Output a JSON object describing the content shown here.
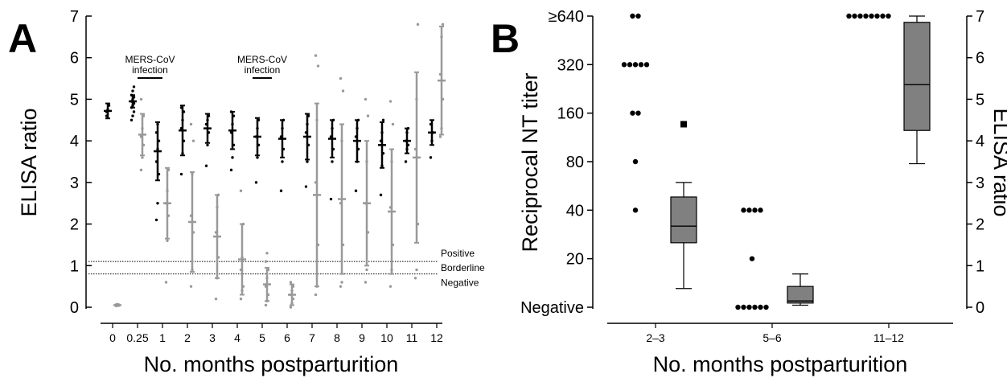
{
  "chart_data": [
    {
      "panel": "A",
      "type": "scatter",
      "ylabel": "ELISA ratio",
      "xlabel": "No. months postparturition",
      "ylim": [
        0,
        7
      ],
      "yticks": [
        "0",
        "1",
        "2",
        "3",
        "4",
        "5",
        "6",
        "7"
      ],
      "xticks": [
        "0",
        "0.25",
        "1",
        "2",
        "3",
        "4",
        "5",
        "6",
        "7",
        "8",
        "9",
        "10",
        "11",
        "12"
      ],
      "thresholds": [
        {
          "label": "Positive",
          "value": 1.1
        },
        {
          "label": "Borderline",
          "value": 0.95
        },
        {
          "label": "Negative",
          "value": 0.8
        }
      ],
      "annotations": [
        {
          "text": [
            "MERS-CoV",
            "infection"
          ],
          "from": "0.25",
          "to": "1"
        },
        {
          "text": [
            "MERS-CoV",
            "infection"
          ],
          "from": "5",
          "to": "5"
        }
      ],
      "series": [
        {
          "group": "dams",
          "color": "#000000",
          "points": [
            {
              "x": "0",
              "mean": 4.72,
              "sd": 0.18,
              "values": [
                4.6,
                4.75,
                4.85,
                4.7
              ]
            },
            {
              "x": "0.25",
              "mean": 4.95,
              "sd": 0.15,
              "values": [
                4.5,
                4.6,
                4.7,
                4.8,
                4.85,
                4.9,
                4.95,
                5.0,
                5.05,
                5.1,
                5.2,
                5.3
              ]
            },
            {
              "x": "1",
              "mean": 3.75,
              "sd": 0.7,
              "values": [
                2.1,
                2.5,
                3.2,
                3.5,
                3.8,
                4.0,
                4.2,
                4.4
              ]
            },
            {
              "x": "2",
              "mean": 4.25,
              "sd": 0.6,
              "values": [
                3.2,
                3.7,
                4.0,
                4.3,
                4.5,
                4.7,
                4.8
              ]
            },
            {
              "x": "3",
              "mean": 4.3,
              "sd": 0.35,
              "values": [
                3.4,
                3.9,
                4.2,
                4.4,
                4.5,
                4.6
              ]
            },
            {
              "x": "4",
              "mean": 4.25,
              "sd": 0.45,
              "values": [
                3.3,
                3.6,
                3.9,
                4.2,
                4.4,
                4.6,
                4.7
              ]
            },
            {
              "x": "5",
              "mean": 4.1,
              "sd": 0.45,
              "values": [
                3.0,
                3.6,
                3.9,
                4.1,
                4.3,
                4.5
              ]
            },
            {
              "x": "6",
              "mean": 4.05,
              "sd": 0.45,
              "values": [
                2.8,
                3.5,
                3.8,
                4.1,
                4.3,
                4.5
              ]
            },
            {
              "x": "7",
              "mean": 4.1,
              "sd": 0.55,
              "values": [
                2.9,
                3.5,
                3.9,
                4.2,
                4.4,
                4.6
              ]
            },
            {
              "x": "8",
              "mean": 4.05,
              "sd": 0.45,
              "values": [
                2.6,
                3.5,
                3.8,
                4.1,
                4.3,
                4.5
              ]
            },
            {
              "x": "9",
              "mean": 4.0,
              "sd": 0.5,
              "values": [
                2.8,
                3.5,
                3.8,
                4.1,
                4.3,
                4.5
              ]
            },
            {
              "x": "10",
              "mean": 3.9,
              "sd": 0.55,
              "values": [
                2.7,
                3.4,
                3.7,
                4.0,
                4.2,
                4.5
              ]
            },
            {
              "x": "11",
              "mean": 4.0,
              "sd": 0.3,
              "values": [
                3.5,
                3.8,
                3.9,
                4.0,
                4.2,
                4.3
              ]
            },
            {
              "x": "12",
              "mean": 4.2,
              "sd": 0.3,
              "values": [
                3.6,
                4.0,
                4.2,
                4.4
              ]
            }
          ]
        },
        {
          "group": "calves",
          "color": "#999999",
          "points": [
            {
              "x": "0",
              "mean": 0.05,
              "sd": 0.02,
              "values": [
                0.03,
                0.04,
                0.05,
                0.06,
                0.07
              ]
            },
            {
              "x": "0.25",
              "mean": 4.15,
              "sd": 0.5,
              "values": [
                3.3,
                3.6,
                3.9,
                4.1,
                4.3,
                4.6,
                5.0
              ]
            },
            {
              "x": "1",
              "mean": 2.5,
              "sd": 0.85,
              "values": [
                0.6,
                1.6,
                2.2,
                2.5,
                2.8,
                3.3
              ]
            },
            {
              "x": "2",
              "mean": 2.05,
              "sd": 1.2,
              "values": [
                0.5,
                0.9,
                1.8,
                2.2,
                3.2,
                4.0,
                4.4
              ]
            },
            {
              "x": "3",
              "mean": 1.7,
              "sd": 1.0,
              "values": [
                0.2,
                0.7,
                1.2,
                1.8,
                2.4,
                2.7
              ]
            },
            {
              "x": "4",
              "mean": 1.15,
              "sd": 0.85,
              "values": [
                0.2,
                0.4,
                0.5,
                0.9,
                1.2,
                2.0,
                2.8
              ]
            },
            {
              "x": "5",
              "mean": 0.55,
              "sd": 0.4,
              "values": [
                0.05,
                0.15,
                0.3,
                0.5,
                0.7,
                0.9,
                1.1,
                1.3
              ]
            },
            {
              "x": "6",
              "mean": 0.3,
              "sd": 0.25,
              "values": [
                0.0,
                0.1,
                0.2,
                0.3,
                0.4,
                0.5,
                0.6
              ]
            },
            {
              "x": "7",
              "mean": 2.7,
              "sd": 2.2,
              "values": [
                0.3,
                0.5,
                1.5,
                3.0,
                4.5,
                5.8,
                6.05
              ]
            },
            {
              "x": "8",
              "mean": 2.6,
              "sd": 1.8,
              "values": [
                0.5,
                0.6,
                1.5,
                2.5,
                4.0,
                5.2,
                5.5
              ]
            },
            {
              "x": "9",
              "mean": 2.5,
              "sd": 1.5,
              "values": [
                0.6,
                0.9,
                1.8,
                2.5,
                3.5,
                4.6,
                5.0
              ]
            },
            {
              "x": "10",
              "mean": 2.3,
              "sd": 1.5,
              "values": [
                0.5,
                0.9,
                1.5,
                2.4,
                3.5,
                4.4,
                4.95
              ]
            },
            {
              "x": "11",
              "mean": 3.6,
              "sd": 2.05,
              "values": [
                0.7,
                0.9,
                2.0,
                3.8,
                5.0,
                6.8
              ]
            },
            {
              "x": "12",
              "mean": 5.45,
              "sd": 1.3,
              "values": [
                4.1,
                4.3,
                5.0,
                5.6,
                6.5,
                6.8
              ]
            }
          ]
        }
      ]
    },
    {
      "panel": "B",
      "type": "box+scatter",
      "xlabel": "No. months postparturition",
      "ylabel_left": "Reciprocal NT titer",
      "ylabel_right": "ELISA ratio",
      "categories": [
        "2–3",
        "5–6",
        "11–12"
      ],
      "left_yticks": [
        "Negative",
        "20",
        "40",
        "80",
        "160",
        "320",
        "≥640"
      ],
      "right_yticks": [
        "0",
        "1",
        "2",
        "3",
        "4",
        "5",
        "6",
        "7"
      ],
      "right_ylim": [
        0,
        7
      ],
      "nt_titer_points": [
        {
          "category": "2–3",
          "titers": [
            "≥640",
            "≥640",
            "320",
            "320",
            "320",
            "320",
            "320",
            "160",
            "160",
            "80",
            "40"
          ]
        },
        {
          "category": "5–6",
          "titers": [
            "40",
            "40",
            "40",
            "40",
            "20",
            "Negative",
            "Negative",
            "Negative",
            "Negative",
            "Negative",
            "Negative"
          ]
        },
        {
          "category": "11–12",
          "titers": [
            "≥640",
            "≥640",
            "≥640",
            "≥640",
            "≥640",
            "≥640",
            "≥640",
            "≥640"
          ]
        }
      ],
      "elisa_boxes": [
        {
          "category": "2–3",
          "min": 0.45,
          "q1": 1.55,
          "median": 1.95,
          "q3": 2.65,
          "max": 3.0,
          "outliers": [
            4.4
          ]
        },
        {
          "category": "5–6",
          "min": 0.05,
          "q1": 0.1,
          "median": 0.15,
          "q3": 0.5,
          "max": 0.8,
          "outliers": []
        },
        {
          "category": "11–12",
          "min": 3.45,
          "q1": 4.25,
          "median": 5.35,
          "q3": 6.85,
          "max": 7.0,
          "outliers": []
        }
      ]
    }
  ]
}
